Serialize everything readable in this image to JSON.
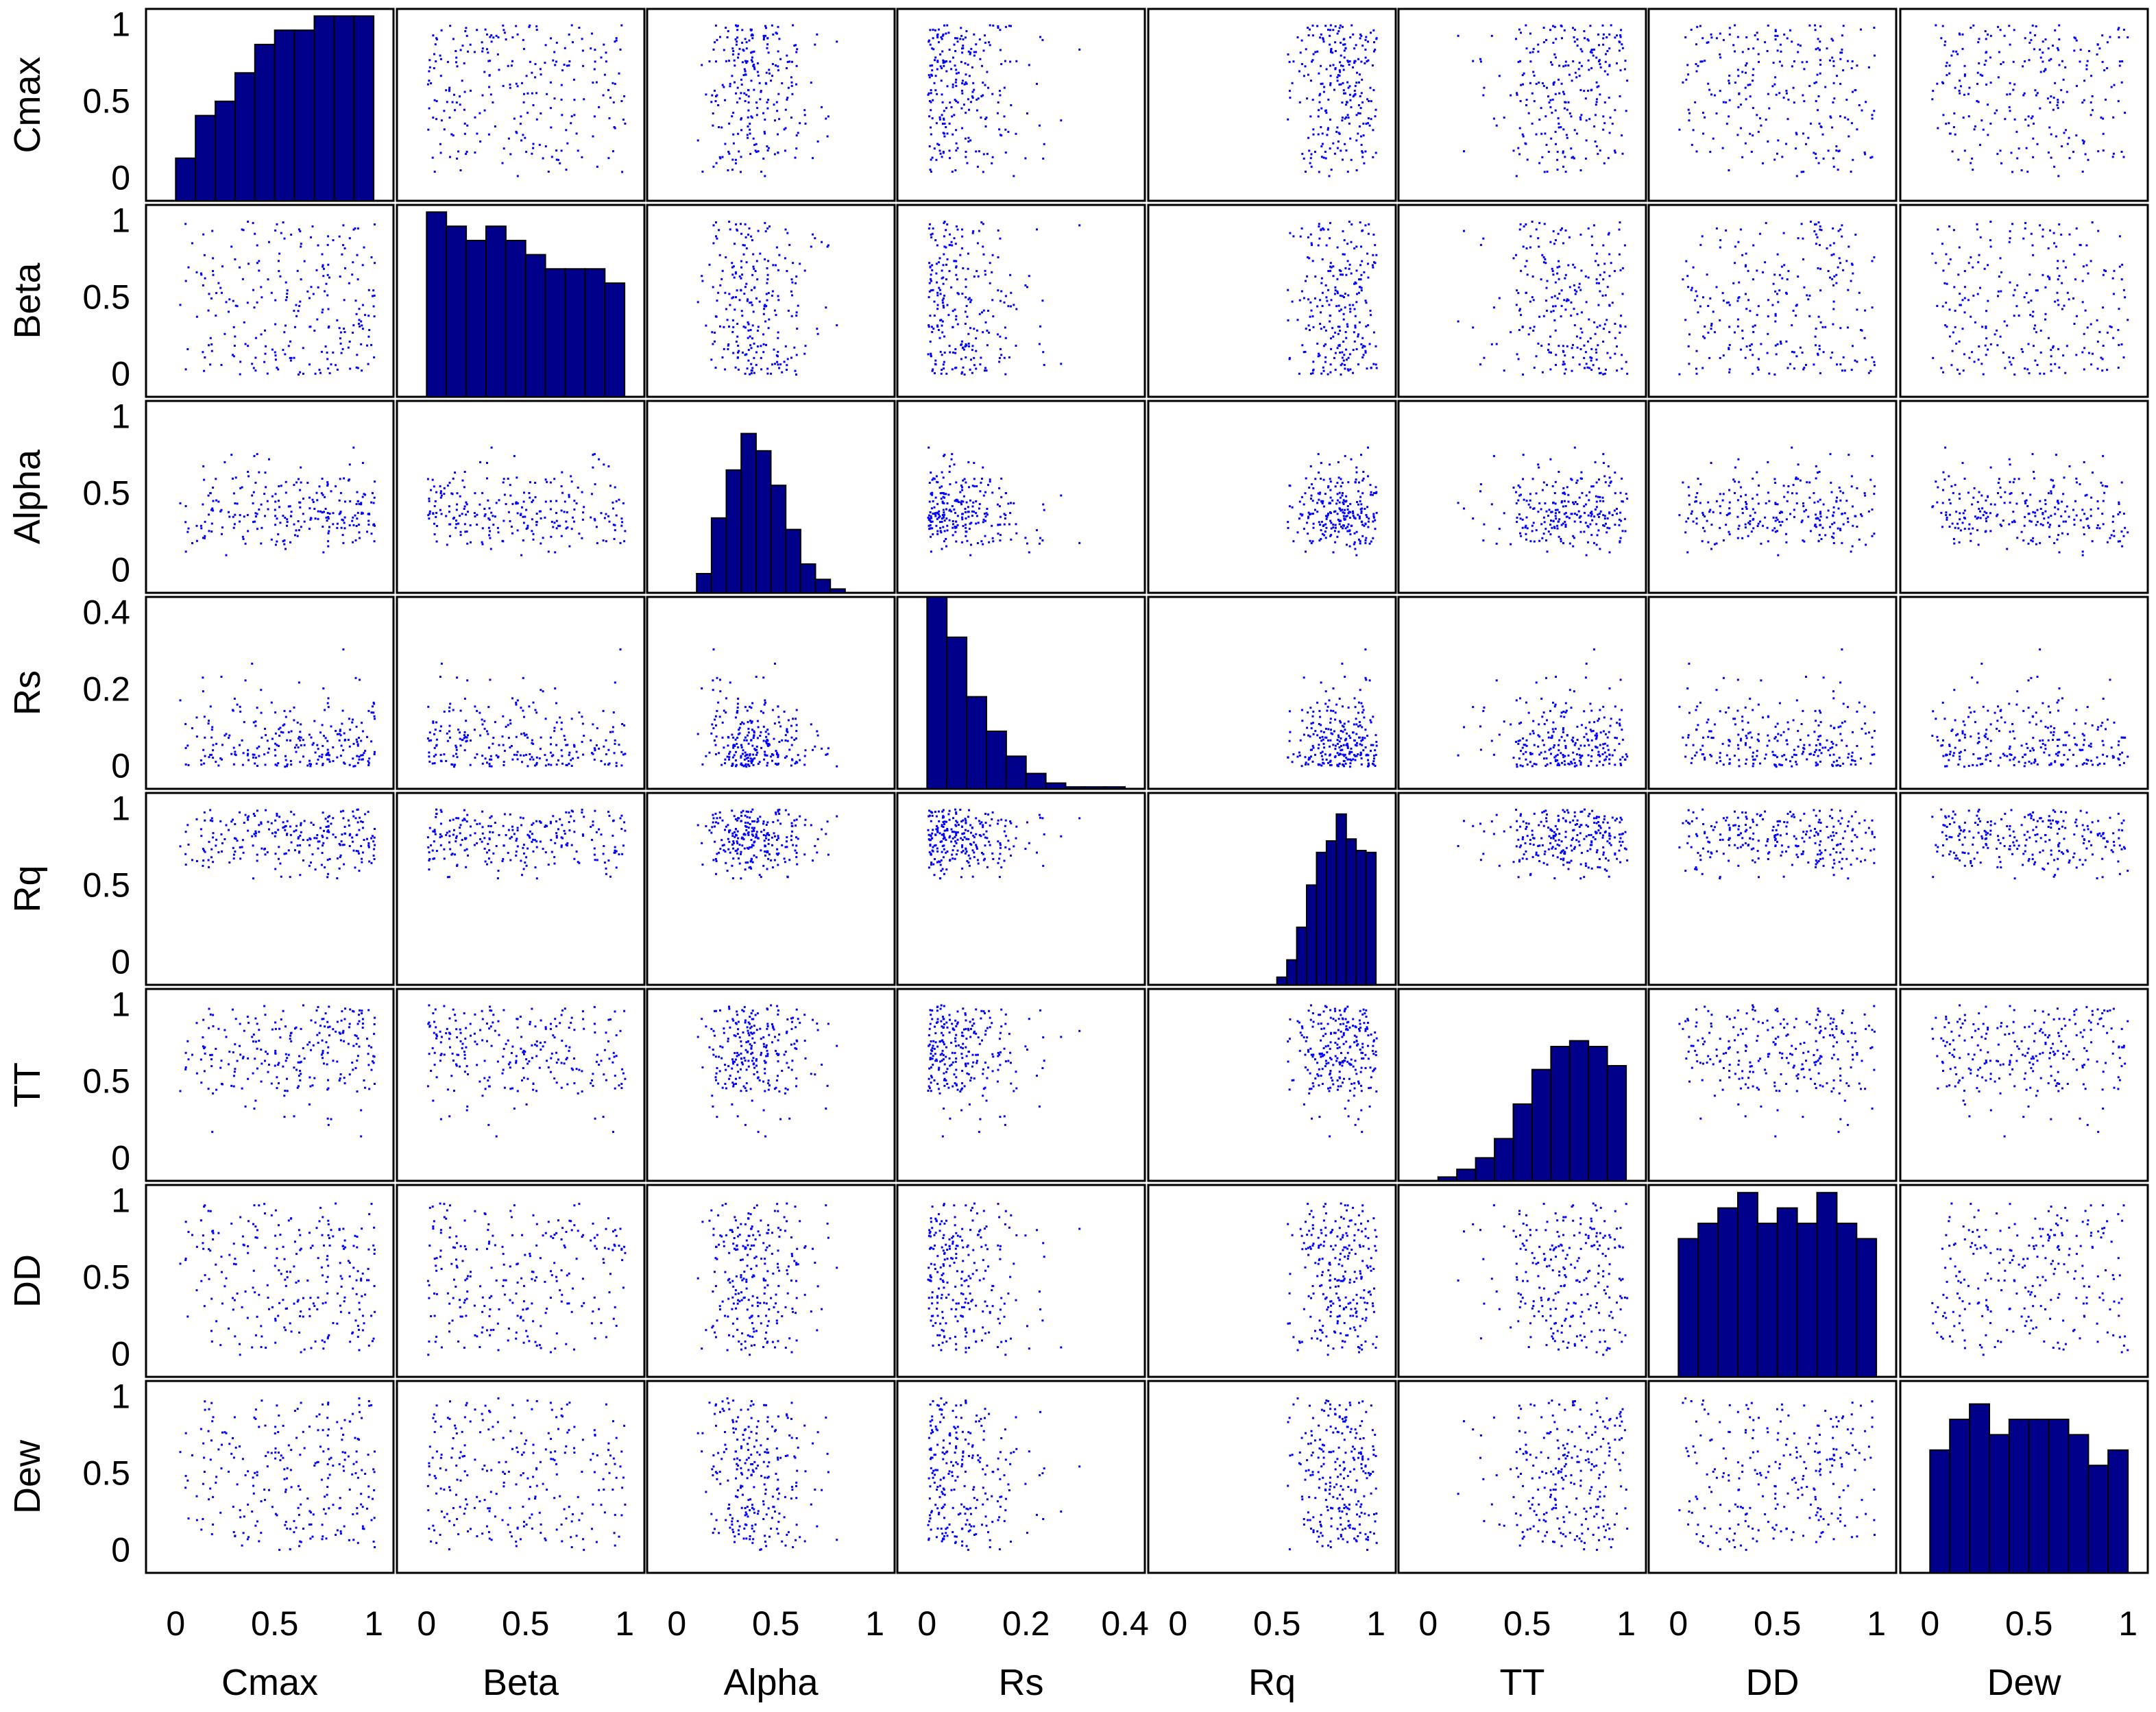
{
  "chart_data": {
    "type": "scatter-matrix",
    "title": "",
    "variables": [
      "Cmax",
      "Beta",
      "Alpha",
      "Rs",
      "Rq",
      "TT",
      "DD",
      "Dew"
    ],
    "axes": {
      "Cmax": {
        "range": [
          -0.15,
          1.1
        ],
        "ticks": [
          0,
          0.5,
          1
        ],
        "tick_labels": [
          "0",
          "0.5",
          "1"
        ]
      },
      "Beta": {
        "range": [
          -0.15,
          1.1
        ],
        "ticks": [
          0,
          0.5,
          1
        ],
        "tick_labels": [
          "0",
          "0.5",
          "1"
        ]
      },
      "Alpha": {
        "range": [
          -0.15,
          1.1
        ],
        "ticks": [
          0,
          0.5,
          1
        ],
        "tick_labels": [
          "0",
          "0.5",
          "1"
        ]
      },
      "Rs": {
        "range": [
          -0.06,
          0.44
        ],
        "ticks": [
          0,
          0.2,
          0.4
        ],
        "tick_labels": [
          "0",
          "0.2",
          "0.4"
        ]
      },
      "Rq": {
        "range": [
          -0.15,
          1.1
        ],
        "ticks": [
          0,
          0.5,
          1
        ],
        "tick_labels": [
          "0",
          "0.5",
          "1"
        ]
      },
      "TT": {
        "range": [
          -0.15,
          1.1
        ],
        "ticks": [
          0,
          0.5,
          1
        ],
        "tick_labels": [
          "0",
          "0.5",
          "1"
        ]
      },
      "DD": {
        "range": [
          -0.15,
          1.1
        ],
        "ticks": [
          0,
          0.5,
          1
        ],
        "tick_labels": [
          "0",
          "0.5",
          "1"
        ]
      },
      "Dew": {
        "range": [
          -0.15,
          1.1
        ],
        "ticks": [
          0,
          0.5,
          1
        ],
        "tick_labels": [
          "0",
          "0.5",
          "1"
        ]
      }
    },
    "histograms": {
      "Cmax": {
        "bin_start": 0,
        "bin_width": 0.1,
        "heights": [
          0.03,
          0.06,
          0.07,
          0.09,
          0.11,
          0.12,
          0.12,
          0.13,
          0.13,
          0.13
        ],
        "y_max": 0.135
      },
      "Beta": {
        "bin_start": 0,
        "bin_width": 0.1,
        "heights": [
          0.13,
          0.12,
          0.11,
          0.12,
          0.11,
          0.1,
          0.09,
          0.09,
          0.09,
          0.08
        ],
        "y_max": 0.135
      },
      "Alpha": {
        "bin_start": 0.1,
        "bin_width": 0.075,
        "heights": [
          0.1,
          0.39,
          0.64,
          0.83,
          0.74,
          0.56,
          0.33,
          0.15,
          0.07,
          0.02
        ],
        "y_max": 1.0
      },
      "Rs": {
        "bin_start": 0,
        "bin_width": 0.04,
        "heights": [
          1.0,
          0.79,
          0.48,
          0.3,
          0.17,
          0.08,
          0.03,
          0.01,
          0.01,
          0.01
        ],
        "y_max": 1.0
      },
      "Rq": {
        "bin_start": 0.5,
        "bin_width": 0.05,
        "heights": [
          0.04,
          0.13,
          0.3,
          0.52,
          0.69,
          0.75,
          0.89,
          0.76,
          0.7,
          0.69
        ],
        "y_max": 1.0
      },
      "TT": {
        "bin_start": 0.05,
        "bin_width": 0.095,
        "heights": [
          0.02,
          0.06,
          0.12,
          0.22,
          0.4,
          0.58,
          0.7,
          0.73,
          0.7,
          0.6
        ],
        "y_max": 1.0
      },
      "DD": {
        "bin_start": 0,
        "bin_width": 0.1,
        "heights": [
          0.09,
          0.1,
          0.11,
          0.12,
          0.1,
          0.11,
          0.1,
          0.12,
          0.1,
          0.09
        ],
        "y_max": 0.125
      },
      "Dew": {
        "bin_start": 0,
        "bin_width": 0.1,
        "heights": [
          0.08,
          0.1,
          0.11,
          0.09,
          0.1,
          0.1,
          0.1,
          0.09,
          0.07,
          0.08
        ],
        "y_max": 0.125
      }
    },
    "scatter_samples": 250,
    "scatter_seed": 1234,
    "point_color": "#0000ff",
    "bar_color": "#00008b",
    "bar_edge_color": "#000000",
    "frame_color": "#000000",
    "background_color": "#ffffff"
  }
}
